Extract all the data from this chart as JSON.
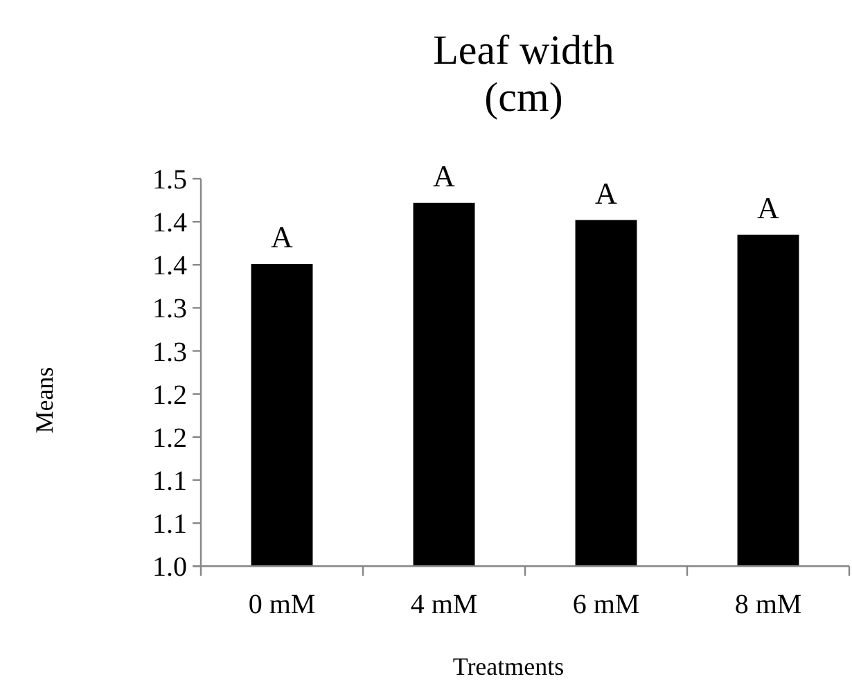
{
  "chart_data": {
    "type": "bar",
    "title": "Leaf width\n(cm)",
    "xlabel": "Treatments",
    "ylabel": "Means",
    "categories": [
      "0 mM",
      "4 mM",
      "6 mM",
      "8 mM"
    ],
    "values": [
      1.351,
      1.422,
      1.402,
      1.385
    ],
    "color": "#000000",
    "ylim": [
      1.0,
      1.45
    ],
    "yticks": [
      {
        "value": 1.0,
        "label": "1.0"
      },
      {
        "value": 1.05,
        "label": "1.1"
      },
      {
        "value": 1.1,
        "label": "1.1"
      },
      {
        "value": 1.15,
        "label": "1.2"
      },
      {
        "value": 1.2,
        "label": "1.2"
      },
      {
        "value": 1.25,
        "label": "1.3"
      },
      {
        "value": 1.3,
        "label": "1.3"
      },
      {
        "value": 1.35,
        "label": "1.4"
      },
      {
        "value": 1.4,
        "label": "1.4"
      },
      {
        "value": 1.45,
        "label": "1.5"
      }
    ],
    "annotations": [
      {
        "text": "A",
        "x": "0 mM",
        "y": 1.351
      },
      {
        "text": "A",
        "x": "4 mM",
        "y": 1.422
      },
      {
        "text": "A",
        "x": "6 mM",
        "y": 1.402
      },
      {
        "text": "A",
        "x": "8 mM",
        "y": 1.385
      }
    ],
    "grid": false
  }
}
